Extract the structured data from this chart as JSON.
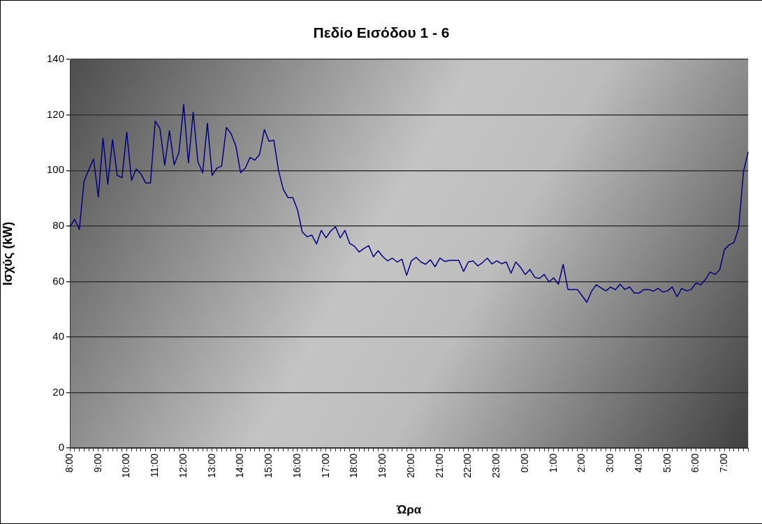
{
  "chart_data": {
    "type": "line",
    "title": "Πεδίο Εισόδου 1 - 6",
    "xlabel": "Ώρα",
    "ylabel": "Ισχύς (kW)",
    "categories": [
      "8:00",
      null,
      null,
      null,
      null,
      null,
      "9:00",
      null,
      null,
      null,
      null,
      null,
      "10:00",
      null,
      null,
      null,
      null,
      null,
      "11:00",
      null,
      null,
      null,
      null,
      null,
      "12:00",
      null,
      null,
      null,
      null,
      null,
      "13:00",
      null,
      null,
      null,
      null,
      null,
      "14:00",
      null,
      null,
      null,
      null,
      null,
      "15:00",
      null,
      null,
      null,
      null,
      null,
      "16:00",
      null,
      null,
      null,
      null,
      null,
      "17:00",
      null,
      null,
      null,
      null,
      null,
      "18:00",
      null,
      null,
      null,
      null,
      null,
      "19:00",
      null,
      null,
      null,
      null,
      null,
      "20:00",
      null,
      null,
      null,
      null,
      null,
      "21:00",
      null,
      null,
      null,
      null,
      null,
      "22:00",
      null,
      null,
      null,
      null,
      null,
      "23:00",
      null,
      null,
      null,
      null,
      null,
      "0:00",
      null,
      null,
      null,
      null,
      null,
      "1:00",
      null,
      null,
      null,
      null,
      null,
      "2:00",
      null,
      null,
      null,
      null,
      null,
      "3:00",
      null,
      null,
      null,
      null,
      null,
      "4:00",
      null,
      null,
      null,
      null,
      null,
      "5:00",
      null,
      null,
      null,
      null,
      null,
      "6:00",
      null,
      null,
      null,
      null,
      null,
      "7:00",
      null,
      null,
      null,
      null,
      null
    ],
    "values": [
      79.7,
      82.4,
      78.7,
      96.1,
      100.3,
      104.1,
      90.5,
      111.6,
      95.0,
      111.1,
      98.2,
      97.4,
      113.8,
      96.4,
      100.5,
      98.7,
      95.5,
      95.5,
      117.8,
      115.1,
      101.9,
      114.3,
      102.0,
      106.5,
      123.8,
      102.7,
      121.0,
      103.1,
      99.2,
      117.0,
      98.2,
      100.8,
      101.6,
      115.5,
      113.2,
      108.8,
      99.2,
      100.9,
      104.7,
      103.7,
      105.8,
      114.7,
      110.5,
      110.9,
      99.9,
      93.2,
      90.2,
      90.2,
      85.8,
      77.8,
      76.1,
      76.7,
      73.5,
      78.4,
      75.7,
      78.2,
      79.7,
      75.7,
      78.4,
      73.7,
      72.7,
      70.6,
      71.9,
      72.9,
      68.9,
      71.1,
      68.9,
      67.4,
      68.4,
      67.0,
      68.0,
      62.2,
      67.4,
      68.7,
      67.0,
      66.2,
      67.8,
      65.3,
      68.4,
      67.2,
      67.6,
      67.6,
      67.6,
      63.6,
      67.0,
      67.4,
      65.6,
      66.8,
      68.4,
      66.3,
      67.4,
      66.4,
      67.0,
      63.0,
      67.0,
      65.1,
      62.5,
      64.3,
      61.5,
      61.1,
      62.5,
      59.8,
      61.3,
      59.0,
      66.2,
      57.1,
      57.1,
      57.1,
      54.8,
      52.5,
      56.5,
      58.8,
      57.7,
      56.6,
      58.0,
      57.0,
      59.0,
      57.1,
      58.0,
      55.8,
      55.8,
      57.1,
      57.1,
      56.5,
      57.5,
      56.2,
      56.6,
      58.0,
      54.5,
      57.5,
      56.6,
      57.1,
      59.4,
      58.8,
      60.7,
      63.4,
      62.5,
      64.2,
      71.5,
      73.2,
      74.0,
      79.2,
      99.5,
      106.7
    ],
    "color": "#000080",
    "ylim": [
      0,
      140
    ],
    "yticks": [
      0,
      20,
      40,
      60,
      80,
      100,
      120,
      140
    ],
    "grid": "y",
    "marker": "none"
  }
}
